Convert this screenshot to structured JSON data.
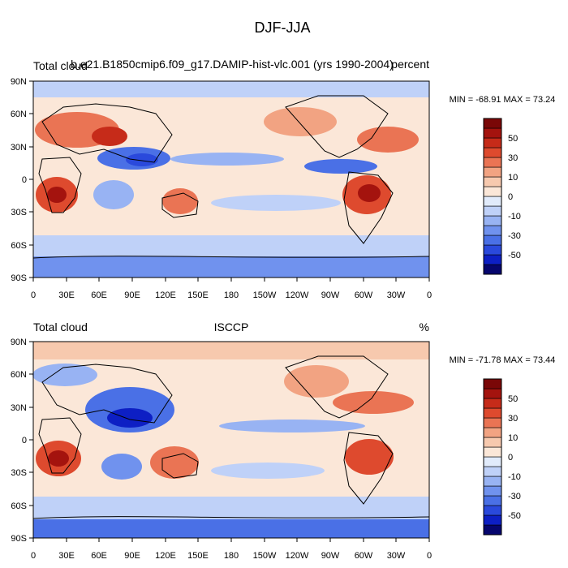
{
  "figure": {
    "title": "DJF-JJA"
  },
  "colormap": {
    "colors": [
      "#06066e",
      "#0d1fc4",
      "#2a49dc",
      "#4a70e6",
      "#7092ee",
      "#98b3f3",
      "#bfd1f8",
      "#e1ebfb",
      "#fbe7d8",
      "#f7c9ae",
      "#f2a382",
      "#ea7454",
      "#de4a2e",
      "#c62b19",
      "#a4130e",
      "#7a0707"
    ],
    "labels": [
      "-50",
      "-30",
      "-10",
      "0",
      "10",
      "30",
      "50"
    ]
  },
  "panels": [
    {
      "left_title": "Total cloud",
      "center_title": "b.e21.B1850cmip6.f09_g17.DAMIP-hist-vlc.001 (yrs 1990-2004)",
      "right_title": "percent",
      "minmax": "MIN = -68.91 MAX =  73.24"
    },
    {
      "left_title": "Total cloud",
      "center_title": "ISCCP",
      "right_title": "%",
      "minmax": "MIN = -71.78 MAX =  73.44"
    }
  ],
  "axes": {
    "lat_labels": [
      "90N",
      "60N",
      "30N",
      "0",
      "30S",
      "60S",
      "90S"
    ],
    "lon_labels": [
      "0",
      "30E",
      "60E",
      "90E",
      "120E",
      "150E",
      "180",
      "150W",
      "120W",
      "90W",
      "60W",
      "30W",
      "0"
    ]
  }
}
